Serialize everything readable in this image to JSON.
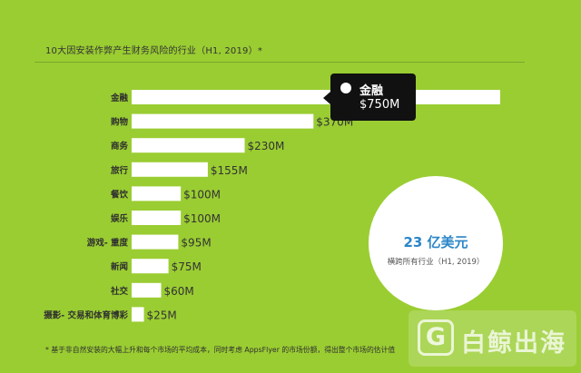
{
  "chart_data": {
    "type": "bar",
    "orientation": "horizontal",
    "title": "10大因安装作弊产生财务风险的行业（H1, 2019）*",
    "categories": [
      "金融",
      "购物",
      "商务",
      "旅行",
      "餐饮",
      "娱乐",
      "游戏- 重度",
      "新闻",
      "社交",
      "摄影- 交易和体育博彩"
    ],
    "values": [
      750,
      370,
      230,
      155,
      100,
      100,
      95,
      75,
      60,
      25
    ],
    "value_labels": [
      "$750M",
      "$370M",
      "$230M",
      "$155M",
      "$100M",
      "$100M",
      "$95M",
      "$75M",
      "$60M",
      "$25M"
    ],
    "unit": "M USD",
    "bar_color": "#ffffff"
  },
  "tooltip": {
    "label": "金融",
    "value": "$750M"
  },
  "summary": {
    "main": "23 亿美元",
    "sub": "横跨所有行业（H1, 2019）",
    "color": "#2a86c8"
  },
  "footnote": "* 基于非自然安装的大幅上升和每个市场的平均成本，同时考虑 AppsFlyer 的市场份额，得出整个市场的估计值",
  "watermark": {
    "icon": "g-logo-icon",
    "text": "白鲸出海"
  },
  "colors": {
    "background": "#9acd32",
    "tooltip": "#111111"
  }
}
